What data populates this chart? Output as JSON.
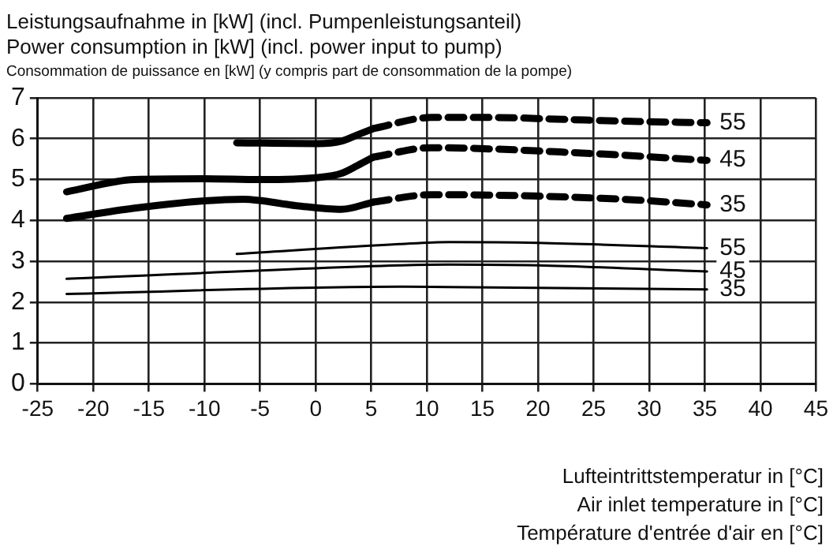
{
  "chart_data": {
    "type": "line",
    "ylabel": "Leistungsaufnahme in [kW] (incl. Pumpenleistungsanteil)\nPower consumption in [kW] (incl. power input to pump)\nConsommation de puissance en [kW] (y compris part de consommation de la pompe)",
    "xlabel": "Lufteintrittstemperatur in [°C]\nAir inlet temperature in [°C]\nTempérature d'entrée d'air en [°C]",
    "xlim": [
      -25,
      45
    ],
    "xticks": [
      -25,
      -20,
      -15,
      -10,
      -5,
      0,
      5,
      10,
      15,
      20,
      25,
      30,
      35,
      40,
      45
    ],
    "ylim": [
      0,
      7
    ],
    "yticks": [
      0,
      1,
      2,
      3,
      4,
      5,
      6,
      7
    ],
    "grid": true,
    "legend": false,
    "marker": "none",
    "series": [
      {
        "color": "#000000",
        "line_style": "solid",
        "x": [
          -7.1,
          0.2,
          2.3,
          3.8,
          5.2
        ],
        "values": [
          5.9,
          5.88,
          5.94,
          6.1,
          6.25
        ]
      },
      {
        "name": "55",
        "color": "#000000",
        "line_style": "dashed",
        "x": [
          5.2,
          10.4,
          15.8,
          21.6,
          27.5,
          35.2
        ],
        "values": [
          6.25,
          6.52,
          6.52,
          6.48,
          6.43,
          6.39
        ]
      },
      {
        "color": "#000000",
        "line_style": "solid",
        "x": [
          -22.4,
          -16.3,
          -10,
          -5,
          0.2,
          2.3,
          3.8,
          5.2
        ],
        "values": [
          4.7,
          5.0,
          5.02,
          5.0,
          5.05,
          5.15,
          5.35,
          5.55
        ]
      },
      {
        "name": "45",
        "color": "#000000",
        "line_style": "dashed",
        "x": [
          5.2,
          10.4,
          15.8,
          21.6,
          27.5,
          35.2
        ],
        "values": [
          5.55,
          5.78,
          5.75,
          5.68,
          5.6,
          5.47
        ]
      },
      {
        "color": "#000000",
        "line_style": "solid",
        "x": [
          -22.4,
          -16.3,
          -10,
          -6.5,
          -1.7,
          2.3,
          5.2
        ],
        "values": [
          4.05,
          4.3,
          4.48,
          4.52,
          4.36,
          4.27,
          4.45
        ]
      },
      {
        "name": "35",
        "color": "#000000",
        "line_style": "dashed",
        "x": [
          5.2,
          10.4,
          15.8,
          27.5,
          35.2
        ],
        "values": [
          4.45,
          4.63,
          4.62,
          4.52,
          4.38
        ]
      },
      {
        "name": "55",
        "color": "#000000",
        "line_style": "solid",
        "x": [
          -7.1,
          7.5,
          12,
          20,
          35.2
        ],
        "values": [
          3.18,
          3.42,
          3.47,
          3.45,
          3.32
        ]
      },
      {
        "name": "45",
        "color": "#000000",
        "line_style": "solid",
        "x": [
          -22.4,
          7.5,
          12,
          20,
          35.2
        ],
        "values": [
          2.57,
          2.9,
          2.92,
          2.9,
          2.75
        ]
      },
      {
        "name": "35",
        "color": "#000000",
        "line_style": "solid",
        "x": [
          -22.4,
          7.5,
          12,
          35.2
        ],
        "values": [
          2.2,
          2.38,
          2.37,
          2.31
        ]
      }
    ]
  }
}
